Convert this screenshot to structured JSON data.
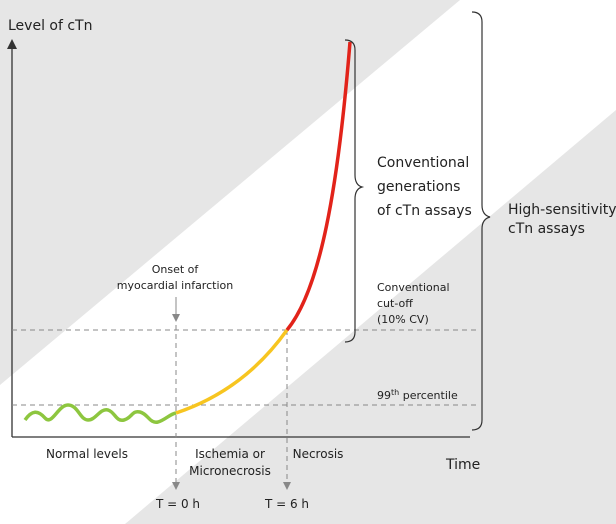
{
  "y_axis_label": "Level of cTn",
  "x_axis_label": "Time",
  "onset": [
    "Onset of",
    "myocardial infarction"
  ],
  "conventional_generations": [
    "Conventional",
    "generations",
    "of cTn assays"
  ],
  "high_sensitivity": [
    "High-sensitivity",
    "cTn assays"
  ],
  "conventional_cutoff": [
    "Conventional",
    "cut-off",
    "(10% CV)"
  ],
  "percentile": {
    "number": "99",
    "suffix": "th",
    "text": " percentile"
  },
  "phases": [
    "Normal levels",
    [
      "Ischemia or",
      "Micronecrosis"
    ],
    "Necrosis"
  ],
  "times": [
    "T = 0 h",
    "T = 6 h"
  ]
}
